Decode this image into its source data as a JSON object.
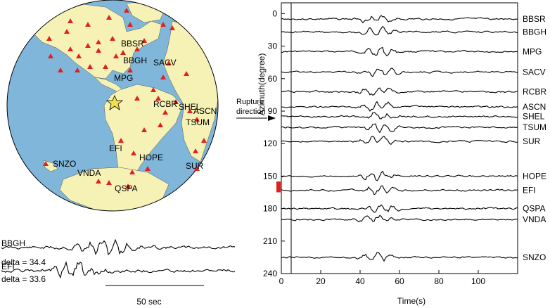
{
  "map": {
    "colors": {
      "ocean": "#7fb6d9",
      "land": "#f6f2b5",
      "station": "#e02020",
      "star": "#f2e04a",
      "outline": "#000000"
    },
    "stations": [
      {
        "id": "BBSR",
        "label": "BBSR"
      },
      {
        "id": "BBGH",
        "label": "BBGH"
      },
      {
        "id": "SACV",
        "label": "SACV"
      },
      {
        "id": "MPG",
        "label": "MPG"
      },
      {
        "id": "RCBR",
        "label": "RCBR"
      },
      {
        "id": "ASCN",
        "label": "ASCN"
      },
      {
        "id": "SHEL",
        "label": "SHEL"
      },
      {
        "id": "TSUM",
        "label": "TSUM"
      },
      {
        "id": "EFI",
        "label": "EFI"
      },
      {
        "id": "HOPE",
        "label": "HOPE"
      },
      {
        "id": "SUR",
        "label": "SUR"
      },
      {
        "id": "SNZO",
        "label": "SNZO"
      },
      {
        "id": "VNDA",
        "label": "VNDA"
      },
      {
        "id": "QSPA",
        "label": "QSPA"
      }
    ]
  },
  "waveforms_left": {
    "traces": [
      {
        "station": "BBGH",
        "delta_label": "delta = 34.4"
      },
      {
        "station": "EFI",
        "delta_label": "delta = 33.6"
      }
    ],
    "scale_label": "50 sec"
  },
  "chart_data": {
    "type": "line",
    "xlabel": "Time(s)",
    "ylabel": "Azimuth(degree)",
    "xlim": [
      0,
      120
    ],
    "ylim": [
      240,
      -10
    ],
    "x_ticks": [
      0,
      20,
      40,
      60,
      80,
      100
    ],
    "y_ticks": [
      0,
      30,
      60,
      90,
      120,
      150,
      180,
      210,
      240
    ],
    "vertical_marker_x": 5,
    "series": [
      {
        "name": "BBSR",
        "azimuth": 5
      },
      {
        "name": "BBGH",
        "azimuth": 17
      },
      {
        "name": "MPG",
        "azimuth": 35
      },
      {
        "name": "SACV",
        "azimuth": 54
      },
      {
        "name": "RCBR",
        "azimuth": 72
      },
      {
        "name": "ASCN",
        "azimuth": 86
      },
      {
        "name": "SHEL",
        "azimuth": 95
      },
      {
        "name": "TSUM",
        "azimuth": 105
      },
      {
        "name": "SUR",
        "azimuth": 118
      },
      {
        "name": "HOPE",
        "azimuth": 150
      },
      {
        "name": "EFI",
        "azimuth": 163
      },
      {
        "name": "QSPA",
        "azimuth": 180
      },
      {
        "name": "VNDA",
        "azimuth": 190
      },
      {
        "name": "SNZO",
        "azimuth": 225
      }
    ],
    "annotation": {
      "label_line1": "Rupture",
      "label_line2": "direction",
      "azimuth_range": [
        155,
        165
      ]
    }
  }
}
